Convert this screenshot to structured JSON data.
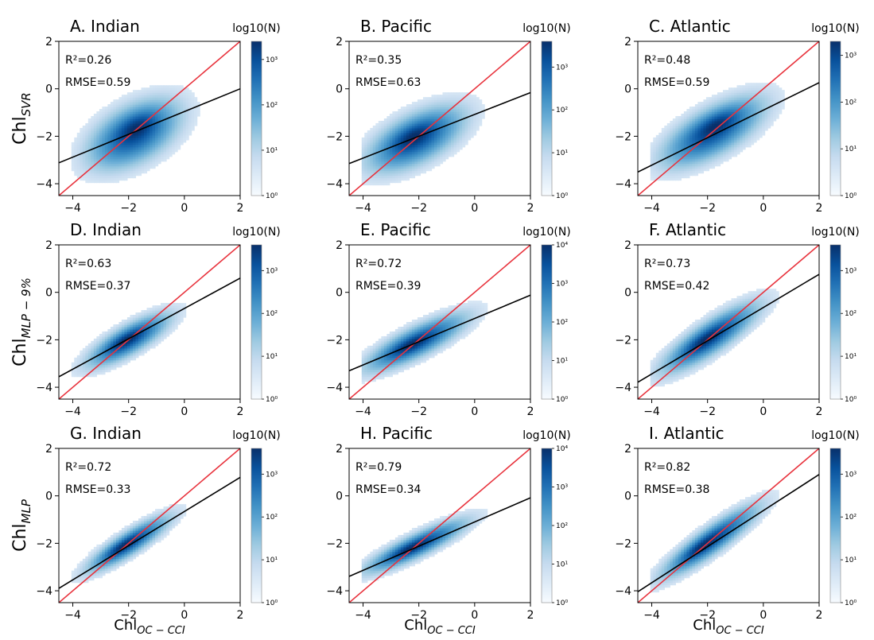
{
  "figure": {
    "row_ylabels": [
      {
        "base": "Chl",
        "sub": "SVR"
      },
      {
        "base": "Chl",
        "sub": "MLP − 9%"
      },
      {
        "base": "Chl",
        "sub": "MLP"
      }
    ],
    "col_xlabel": {
      "base": "Chl",
      "sub": "OC − CCI"
    },
    "colorbar_title": "log10(N)",
    "colors": {
      "fit_line": "#000000",
      "identity_line": "#e8323c",
      "cmap_low": "#f7fbff",
      "cmap_high": "#08306b"
    }
  },
  "chart_data": [
    {
      "type": "heatmap",
      "title": "A. Indian",
      "r2": "R²=0.26",
      "rmse": "RMSE=0.59",
      "xlim": [
        -4.5,
        2
      ],
      "ylim": [
        -4.5,
        2
      ],
      "xticks": [
        "-4",
        "-2",
        "0",
        "2"
      ],
      "yticks": [
        "-4",
        "-2",
        "0",
        "2"
      ],
      "fit_line": {
        "slope": 0.48,
        "intercept": -0.96
      },
      "identity_line": {
        "slope": 1,
        "intercept": 0
      },
      "density": {
        "cx": -1.8,
        "cy": -1.9,
        "sx": 0.95,
        "sy": 0.85,
        "rho": 0.5,
        "peak_x": -1.7,
        "peak_y": -1.6
      },
      "colorbar": {
        "ticks": [
          "10⁰",
          "10¹",
          "10²",
          "10³"
        ],
        "max_exp": 3.4
      }
    },
    {
      "type": "heatmap",
      "title": "B. Pacific",
      "r2": "R²=0.35",
      "rmse": "RMSE=0.63",
      "xlim": [
        -4.5,
        2
      ],
      "ylim": [
        -4.5,
        2
      ],
      "xticks": [
        "-4",
        "-2",
        "0",
        "2"
      ],
      "yticks": [
        "-4",
        "-2",
        "0",
        "2"
      ],
      "fit_line": {
        "slope": 0.46,
        "intercept": -1.08
      },
      "identity_line": {
        "slope": 1,
        "intercept": 0
      },
      "density": {
        "cx": -2.1,
        "cy": -2.1,
        "sx": 1.0,
        "sy": 0.8,
        "rho": 0.6,
        "peak_x": -2.2,
        "peak_y": -2.0
      },
      "colorbar": {
        "ticks": [
          "10⁰",
          "10¹",
          "10²",
          "10³"
        ],
        "max_exp": 3.6
      }
    },
    {
      "type": "heatmap",
      "title": "C. Atlantic",
      "r2": "R²=0.48",
      "rmse": "RMSE=0.59",
      "xlim": [
        -4.5,
        2
      ],
      "ylim": [
        -4.5,
        2
      ],
      "xticks": [
        "-4",
        "-2",
        "0",
        "2"
      ],
      "yticks": [
        "-4",
        "-2",
        "0",
        "2"
      ],
      "fit_line": {
        "slope": 0.58,
        "intercept": -0.9
      },
      "identity_line": {
        "slope": 1,
        "intercept": 0
      },
      "density": {
        "cx": -1.8,
        "cy": -1.8,
        "sx": 1.05,
        "sy": 0.85,
        "rho": 0.68,
        "peak_x": -1.7,
        "peak_y": -1.5
      },
      "colorbar": {
        "ticks": [
          "10⁰",
          "10¹",
          "10²",
          "10³"
        ],
        "max_exp": 3.3
      }
    },
    {
      "type": "heatmap",
      "title": "D. Indian",
      "r2": "R²=0.63",
      "rmse": "RMSE=0.37",
      "xlim": [
        -4.5,
        2
      ],
      "ylim": [
        -4.5,
        2
      ],
      "xticks": [
        "-4",
        "-2",
        "0",
        "2"
      ],
      "yticks": [
        "-4",
        "-2",
        "0",
        "2"
      ],
      "fit_line": {
        "slope": 0.64,
        "intercept": -0.68
      },
      "identity_line": {
        "slope": 1,
        "intercept": 0
      },
      "density": {
        "cx": -2.0,
        "cy": -2.0,
        "sx": 0.85,
        "sy": 0.65,
        "rho": 0.8,
        "peak_x": -2.1,
        "peak_y": -2.0
      },
      "colorbar": {
        "ticks": [
          "10⁰",
          "10¹",
          "10²",
          "10³"
        ],
        "max_exp": 3.6
      }
    },
    {
      "type": "heatmap",
      "title": "E. Pacific",
      "r2": "R²=0.72",
      "rmse": "RMSE=0.39",
      "xlim": [
        -4.5,
        2
      ],
      "ylim": [
        -4.5,
        2
      ],
      "xticks": [
        "-4",
        "-2",
        "0",
        "2"
      ],
      "yticks": [
        "-4",
        "-2",
        "0",
        "2"
      ],
      "fit_line": {
        "slope": 0.49,
        "intercept": -1.1
      },
      "identity_line": {
        "slope": 1,
        "intercept": 0
      },
      "density": {
        "cx": -2.1,
        "cy": -2.1,
        "sx": 1.05,
        "sy": 0.7,
        "rho": 0.82,
        "peak_x": -2.3,
        "peak_y": -2.2
      },
      "colorbar": {
        "ticks": [
          "10⁰",
          "10¹",
          "10²",
          "10³",
          "10⁴"
        ],
        "max_exp": 4.0
      }
    },
    {
      "type": "heatmap",
      "title": "F. Atlantic",
      "r2": "R²=0.73",
      "rmse": "RMSE=0.42",
      "xlim": [
        -4.5,
        2
      ],
      "ylim": [
        -4.5,
        2
      ],
      "xticks": [
        "-4",
        "-2",
        "0",
        "2"
      ],
      "yticks": [
        "-4",
        "-2",
        "0",
        "2"
      ],
      "fit_line": {
        "slope": 0.7,
        "intercept": -0.64
      },
      "identity_line": {
        "slope": 1,
        "intercept": 0
      },
      "density": {
        "cx": -1.9,
        "cy": -1.9,
        "sx": 1.0,
        "sy": 0.85,
        "rho": 0.85,
        "peak_x": -2.1,
        "peak_y": -2.0
      },
      "colorbar": {
        "ticks": [
          "10⁰",
          "10¹",
          "10²",
          "10³"
        ],
        "max_exp": 3.6
      }
    },
    {
      "type": "heatmap",
      "title": "G. Indian",
      "r2": "R²=0.72",
      "rmse": "RMSE=0.33",
      "xlim": [
        -4.5,
        2
      ],
      "ylim": [
        -4.5,
        2
      ],
      "xticks": [
        "-4",
        "-2",
        "0",
        "2"
      ],
      "yticks": [
        "-4",
        "-2",
        "0",
        "2"
      ],
      "fit_line": {
        "slope": 0.72,
        "intercept": -0.66
      },
      "identity_line": {
        "slope": 1,
        "intercept": 0
      },
      "density": {
        "cx": -2.0,
        "cy": -2.0,
        "sx": 0.85,
        "sy": 0.68,
        "rho": 0.88,
        "peak_x": -2.2,
        "peak_y": -2.1
      },
      "colorbar": {
        "ticks": [
          "10⁰",
          "10¹",
          "10²",
          "10³"
        ],
        "max_exp": 3.6
      }
    },
    {
      "type": "heatmap",
      "title": "H. Pacific",
      "r2": "R²=0.79",
      "rmse": "RMSE=0.34",
      "xlim": [
        -4.5,
        2
      ],
      "ylim": [
        -4.5,
        2
      ],
      "xticks": [
        "-4",
        "-2",
        "0",
        "2"
      ],
      "yticks": [
        "-4",
        "-2",
        "0",
        "2"
      ],
      "fit_line": {
        "slope": 0.51,
        "intercept": -1.1
      },
      "identity_line": {
        "slope": 1,
        "intercept": 0
      },
      "density": {
        "cx": -2.1,
        "cy": -2.1,
        "sx": 1.05,
        "sy": 0.65,
        "rho": 0.88,
        "peak_x": -2.3,
        "peak_y": -2.2
      },
      "colorbar": {
        "ticks": [
          "10⁰",
          "10¹",
          "10²",
          "10³",
          "10⁴"
        ],
        "max_exp": 4.0
      }
    },
    {
      "type": "heatmap",
      "title": "I. Atlantic",
      "r2": "R²=0.82",
      "rmse": "RMSE=0.38",
      "xlim": [
        -4.5,
        2
      ],
      "ylim": [
        -4.5,
        2
      ],
      "xticks": [
        "-4",
        "-2",
        "0",
        "2"
      ],
      "yticks": [
        "-4",
        "-2",
        "0",
        "2"
      ],
      "fit_line": {
        "slope": 0.76,
        "intercept": -0.62
      },
      "identity_line": {
        "slope": 1,
        "intercept": 0
      },
      "density": {
        "cx": -1.9,
        "cy": -1.9,
        "sx": 1.0,
        "sy": 0.88,
        "rho": 0.9,
        "peak_x": -2.2,
        "peak_y": -2.1
      },
      "colorbar": {
        "ticks": [
          "10⁰",
          "10¹",
          "10²",
          "10³"
        ],
        "max_exp": 3.6
      }
    }
  ]
}
